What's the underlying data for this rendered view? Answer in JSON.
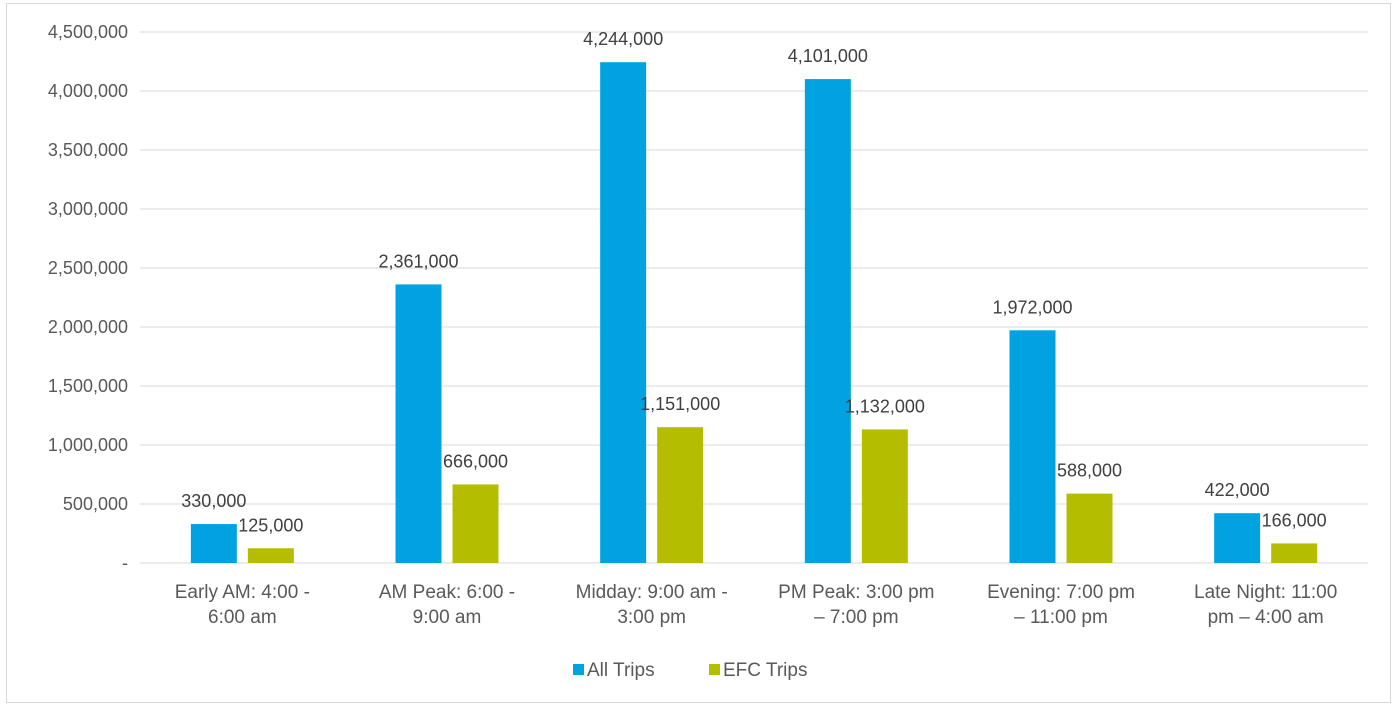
{
  "chart_data": {
    "type": "bar",
    "categories": [
      [
        "Early AM: 4:00 -",
        "6:00 am"
      ],
      [
        "AM Peak: 6:00 -",
        "9:00 am"
      ],
      [
        "Midday: 9:00 am -",
        "3:00 pm"
      ],
      [
        "PM Peak: 3:00 pm",
        "– 7:00 pm"
      ],
      [
        "Evening: 7:00 pm",
        "– 11:00 pm"
      ],
      [
        "Late Night: 11:00",
        "pm – 4:00 am"
      ]
    ],
    "series": [
      {
        "name": "All Trips",
        "color": "#00a3e0",
        "values": [
          330000,
          2361000,
          4244000,
          4101000,
          1972000,
          422000
        ],
        "labels": [
          "330,000",
          "2,361,000",
          "4,244,000",
          "4,101,000",
          "1,972,000",
          "422,000"
        ]
      },
      {
        "name": "EFC Trips",
        "color": "#b5bd00",
        "values": [
          125000,
          666000,
          1151000,
          1132000,
          588000,
          166000
        ],
        "labels": [
          "125,000",
          "666,000",
          "1,151,000",
          "1,132,000",
          "588,000",
          "166,000"
        ]
      }
    ],
    "ylim": [
      0,
      4500000
    ],
    "yticks": [
      0,
      500000,
      1000000,
      1500000,
      2000000,
      2500000,
      3000000,
      3500000,
      4000000,
      4500000
    ],
    "ytick_labels": [
      "-",
      "500,000",
      "1,000,000",
      "1,500,000",
      "2,000,000",
      "2,500,000",
      "3,000,000",
      "3,500,000",
      "4,000,000",
      "4,500,000"
    ],
    "grid": true,
    "legend": "bottom-center",
    "title": "",
    "xlabel": "",
    "ylabel": ""
  }
}
